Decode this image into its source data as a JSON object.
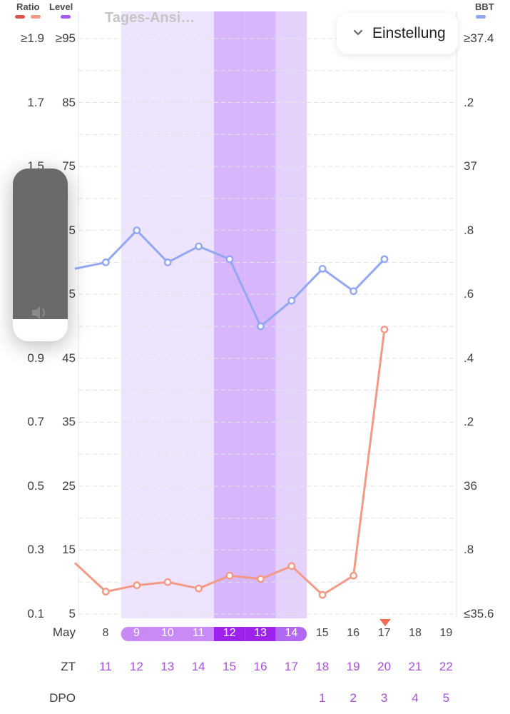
{
  "legend": [
    {
      "label": "Ratio",
      "swatch_colors": [
        "#d9534f",
        "#f29a85"
      ]
    },
    {
      "label": "Level",
      "swatch_colors": [
        "#a45cf2"
      ]
    },
    {
      "label": "BBT",
      "swatch_colors": [
        "#94a8f2"
      ]
    }
  ],
  "view_label": "Tages-Ansi…",
  "settings_button": {
    "label": "Einstellung",
    "icon": "chevron-down-icon"
  },
  "volume_overlay": {
    "icon": "speaker-icon",
    "level": 0.87
  },
  "axes": {
    "ratio_ticks": [
      "≥1.9",
      "1.7",
      "1.5",
      "",
      "",
      "0.9",
      "0.7",
      "0.5",
      "0.3",
      "0.1"
    ],
    "level_ticks": [
      "≥95",
      "85",
      "75",
      "5",
      "5",
      "45",
      "35",
      "25",
      "15",
      "5"
    ],
    "bbt_ticks": [
      "≥37.4",
      ".2",
      "37",
      ".8",
      ".6",
      ".4",
      ".2",
      "36",
      ".8",
      "≤35.6"
    ]
  },
  "rows": {
    "date_label": "May",
    "zt_label": "ZT",
    "dpo_label": "DPO"
  },
  "days": [
    {
      "date": "8",
      "zt": "11",
      "dpo": "",
      "highlight": "none"
    },
    {
      "date": "9",
      "zt": "12",
      "dpo": "",
      "highlight": "light"
    },
    {
      "date": "10",
      "zt": "13",
      "dpo": "",
      "highlight": "light"
    },
    {
      "date": "11",
      "zt": "14",
      "dpo": "",
      "highlight": "light"
    },
    {
      "date": "12",
      "zt": "15",
      "dpo": "",
      "highlight": "dark"
    },
    {
      "date": "13",
      "zt": "16",
      "dpo": "",
      "highlight": "dark"
    },
    {
      "date": "14",
      "zt": "17",
      "dpo": "",
      "highlight": "medium"
    },
    {
      "date": "15",
      "zt": "18",
      "dpo": "1",
      "highlight": "none"
    },
    {
      "date": "16",
      "zt": "19",
      "dpo": "2",
      "highlight": "none"
    },
    {
      "date": "17",
      "zt": "20",
      "dpo": "3",
      "highlight": "none",
      "marker": "today"
    },
    {
      "date": "18",
      "zt": "21",
      "dpo": "4",
      "highlight": "none"
    },
    {
      "date": "19",
      "zt": "22",
      "dpo": "5",
      "highlight": "none"
    }
  ],
  "chart_data": {
    "type": "line",
    "x": [
      "7",
      "8",
      "9",
      "10",
      "11",
      "12",
      "13",
      "14",
      "15",
      "16",
      "17"
    ],
    "series": [
      {
        "name": "BBT",
        "axis": "bbt",
        "color": "#94a8f2",
        "values": [
          36.68,
          36.7,
          36.8,
          36.7,
          36.75,
          36.71,
          36.5,
          36.58,
          36.68,
          36.61,
          36.71
        ]
      },
      {
        "name": "Ratio",
        "axis": "ratio",
        "color": "#f29a85",
        "values": [
          0.26,
          0.17,
          0.19,
          0.2,
          0.18,
          0.22,
          0.21,
          0.25,
          0.16,
          0.22,
          0.99
        ]
      }
    ],
    "ratio_axis": {
      "min": 0.1,
      "max": 1.9
    },
    "bbt_axis": {
      "min": 35.6,
      "max": 37.4
    },
    "level_axis": {
      "min": 5,
      "max": 95
    }
  }
}
